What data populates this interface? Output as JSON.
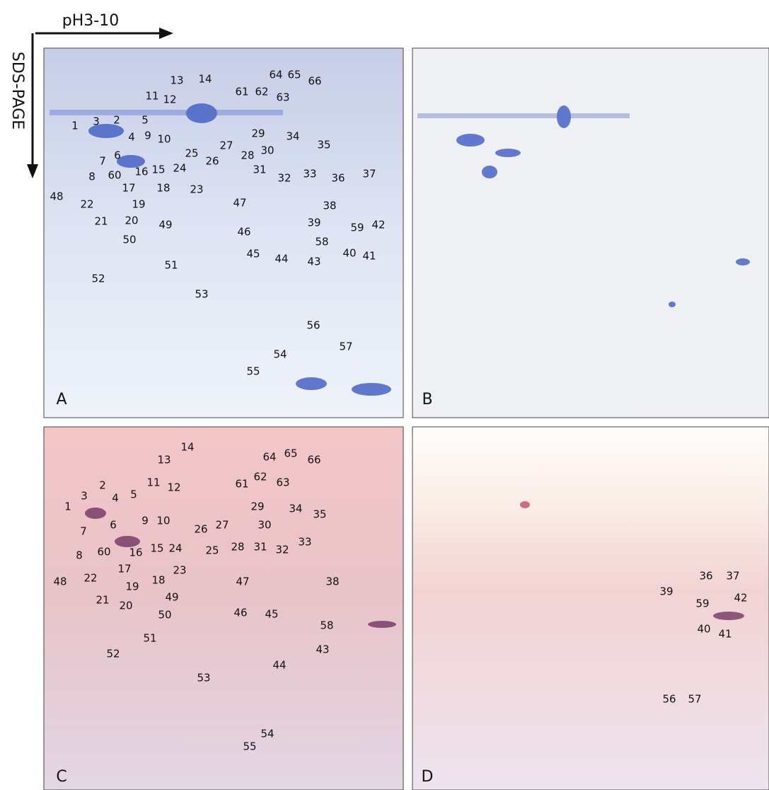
{
  "axes": {
    "x_label": "pH3-10",
    "y_label": "SDS-PAGE"
  },
  "panels": [
    {
      "letter": "A",
      "spots": [
        "13",
        "14",
        "11",
        "12",
        "64",
        "65",
        "66",
        "61",
        "62",
        "63",
        "1",
        "3",
        "2",
        "5",
        "4",
        "9",
        "10",
        "6",
        "7",
        "8",
        "60",
        "16",
        "15",
        "25",
        "24",
        "26",
        "27",
        "28",
        "29",
        "34",
        "35",
        "30",
        "31",
        "32",
        "33",
        "36",
        "37",
        "17",
        "18",
        "23",
        "19",
        "48",
        "22",
        "21",
        "20",
        "47",
        "38",
        "49",
        "39",
        "59",
        "42",
        "46",
        "50",
        "58",
        "45",
        "40",
        "41",
        "44",
        "43",
        "51",
        "52",
        "53",
        "56",
        "57",
        "54",
        "55"
      ]
    },
    {
      "letter": "B",
      "spots": []
    },
    {
      "letter": "C",
      "spots": [
        "13",
        "14",
        "64",
        "65",
        "66",
        "11",
        "12",
        "61",
        "62",
        "63",
        "1",
        "3",
        "2",
        "4",
        "5",
        "29",
        "34",
        "35",
        "6",
        "7",
        "9",
        "10",
        "30",
        "26",
        "27",
        "25",
        "24",
        "28",
        "31",
        "32",
        "33",
        "8",
        "60",
        "16",
        "15",
        "23",
        "17",
        "18",
        "19",
        "48",
        "22",
        "21",
        "20",
        "47",
        "38",
        "49",
        "50",
        "46",
        "45",
        "58",
        "51",
        "52",
        "43",
        "44",
        "53",
        "54",
        "55"
      ]
    },
    {
      "letter": "D",
      "spots": [
        "36",
        "37",
        "39",
        "59",
        "42",
        "40",
        "41",
        "56",
        "57"
      ]
    }
  ]
}
